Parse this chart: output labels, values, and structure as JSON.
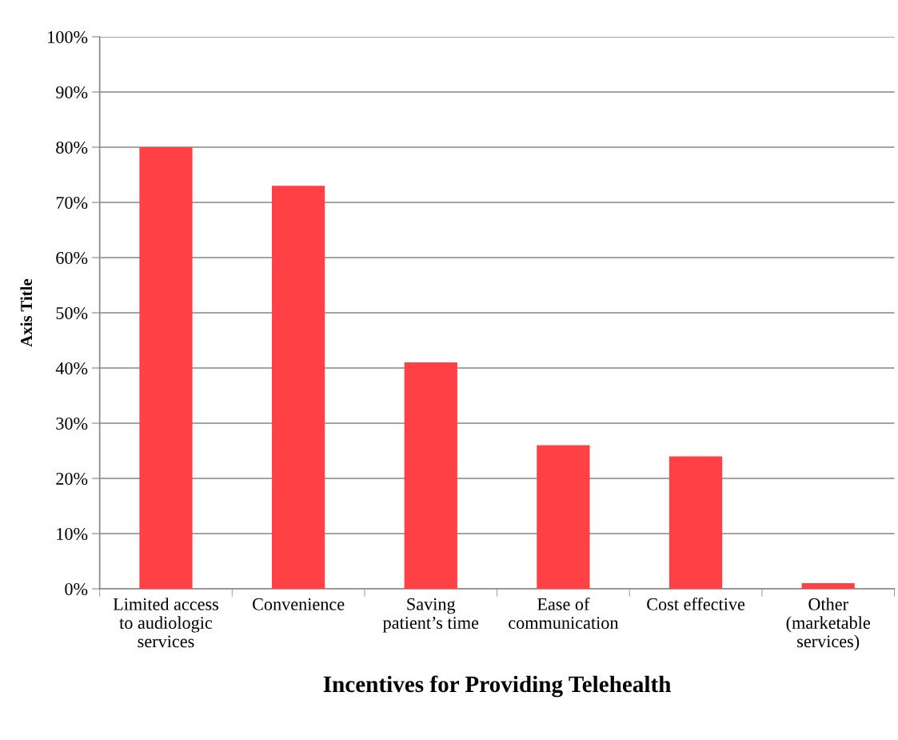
{
  "chart_data": {
    "type": "bar",
    "xlabel": "Incentives for Providing Telehealth",
    "ylabel": "Axis Title",
    "categories": [
      "Limited access\nto audiologic\nservices",
      "Convenience",
      "Saving\npatient’s time",
      "Ease of\ncommunication",
      "Cost effective",
      "Other\n(marketable\nservices)"
    ],
    "values": [
      80,
      73,
      41,
      26,
      24,
      1
    ],
    "color": "#ff4045",
    "ylim": [
      0,
      100
    ],
    "yticks": [
      {
        "value": 0,
        "label": "0%"
      },
      {
        "value": 10,
        "label": "10%"
      },
      {
        "value": 20,
        "label": "20%"
      },
      {
        "value": 30,
        "label": "30%"
      },
      {
        "value": 40,
        "label": "40%"
      },
      {
        "value": 50,
        "label": "50%"
      },
      {
        "value": 60,
        "label": "60%"
      },
      {
        "value": 70,
        "label": "70%"
      },
      {
        "value": 80,
        "label": "80%"
      },
      {
        "value": 90,
        "label": "90%"
      },
      {
        "value": 100,
        "label": "100%"
      }
    ],
    "grid": "y",
    "legend": false
  }
}
